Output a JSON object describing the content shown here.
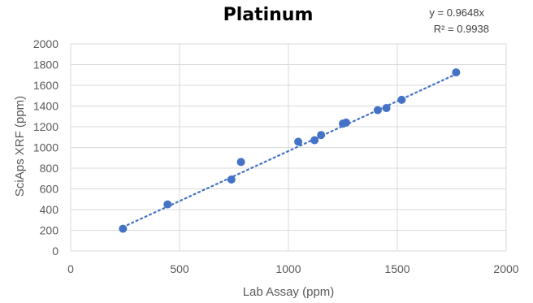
{
  "chart_data": {
    "type": "scatter",
    "title": "Platinum",
    "xlabel": "Lab Assay (ppm)",
    "ylabel": "SciAps XRF (ppm)",
    "xlim": [
      0,
      2000
    ],
    "ylim": [
      0,
      2000
    ],
    "x_ticks": [
      "0",
      "500",
      "1000",
      "1500",
      "2000"
    ],
    "y_ticks": [
      "0",
      "200",
      "400",
      "600",
      "800",
      "1000",
      "1200",
      "1400",
      "1600",
      "1800",
      "2000"
    ],
    "grid": true,
    "legend": "none",
    "point_color": "#4472c4",
    "points": [
      {
        "x": 240,
        "y": 215
      },
      {
        "x": 445,
        "y": 450
      },
      {
        "x": 738,
        "y": 690
      },
      {
        "x": 782,
        "y": 860
      },
      {
        "x": 1045,
        "y": 1055
      },
      {
        "x": 1120,
        "y": 1070
      },
      {
        "x": 1150,
        "y": 1120
      },
      {
        "x": 1250,
        "y": 1230
      },
      {
        "x": 1265,
        "y": 1240
      },
      {
        "x": 1410,
        "y": 1360
      },
      {
        "x": 1450,
        "y": 1380
      },
      {
        "x": 1520,
        "y": 1460
      },
      {
        "x": 1770,
        "y": 1725
      }
    ],
    "trendline": {
      "type": "linear",
      "slope": 0.9648,
      "intercept": 0,
      "style": "dotted"
    },
    "annotations": {
      "equation": "y = 0.9648x",
      "r_squared": "R² = 0.9938"
    }
  }
}
